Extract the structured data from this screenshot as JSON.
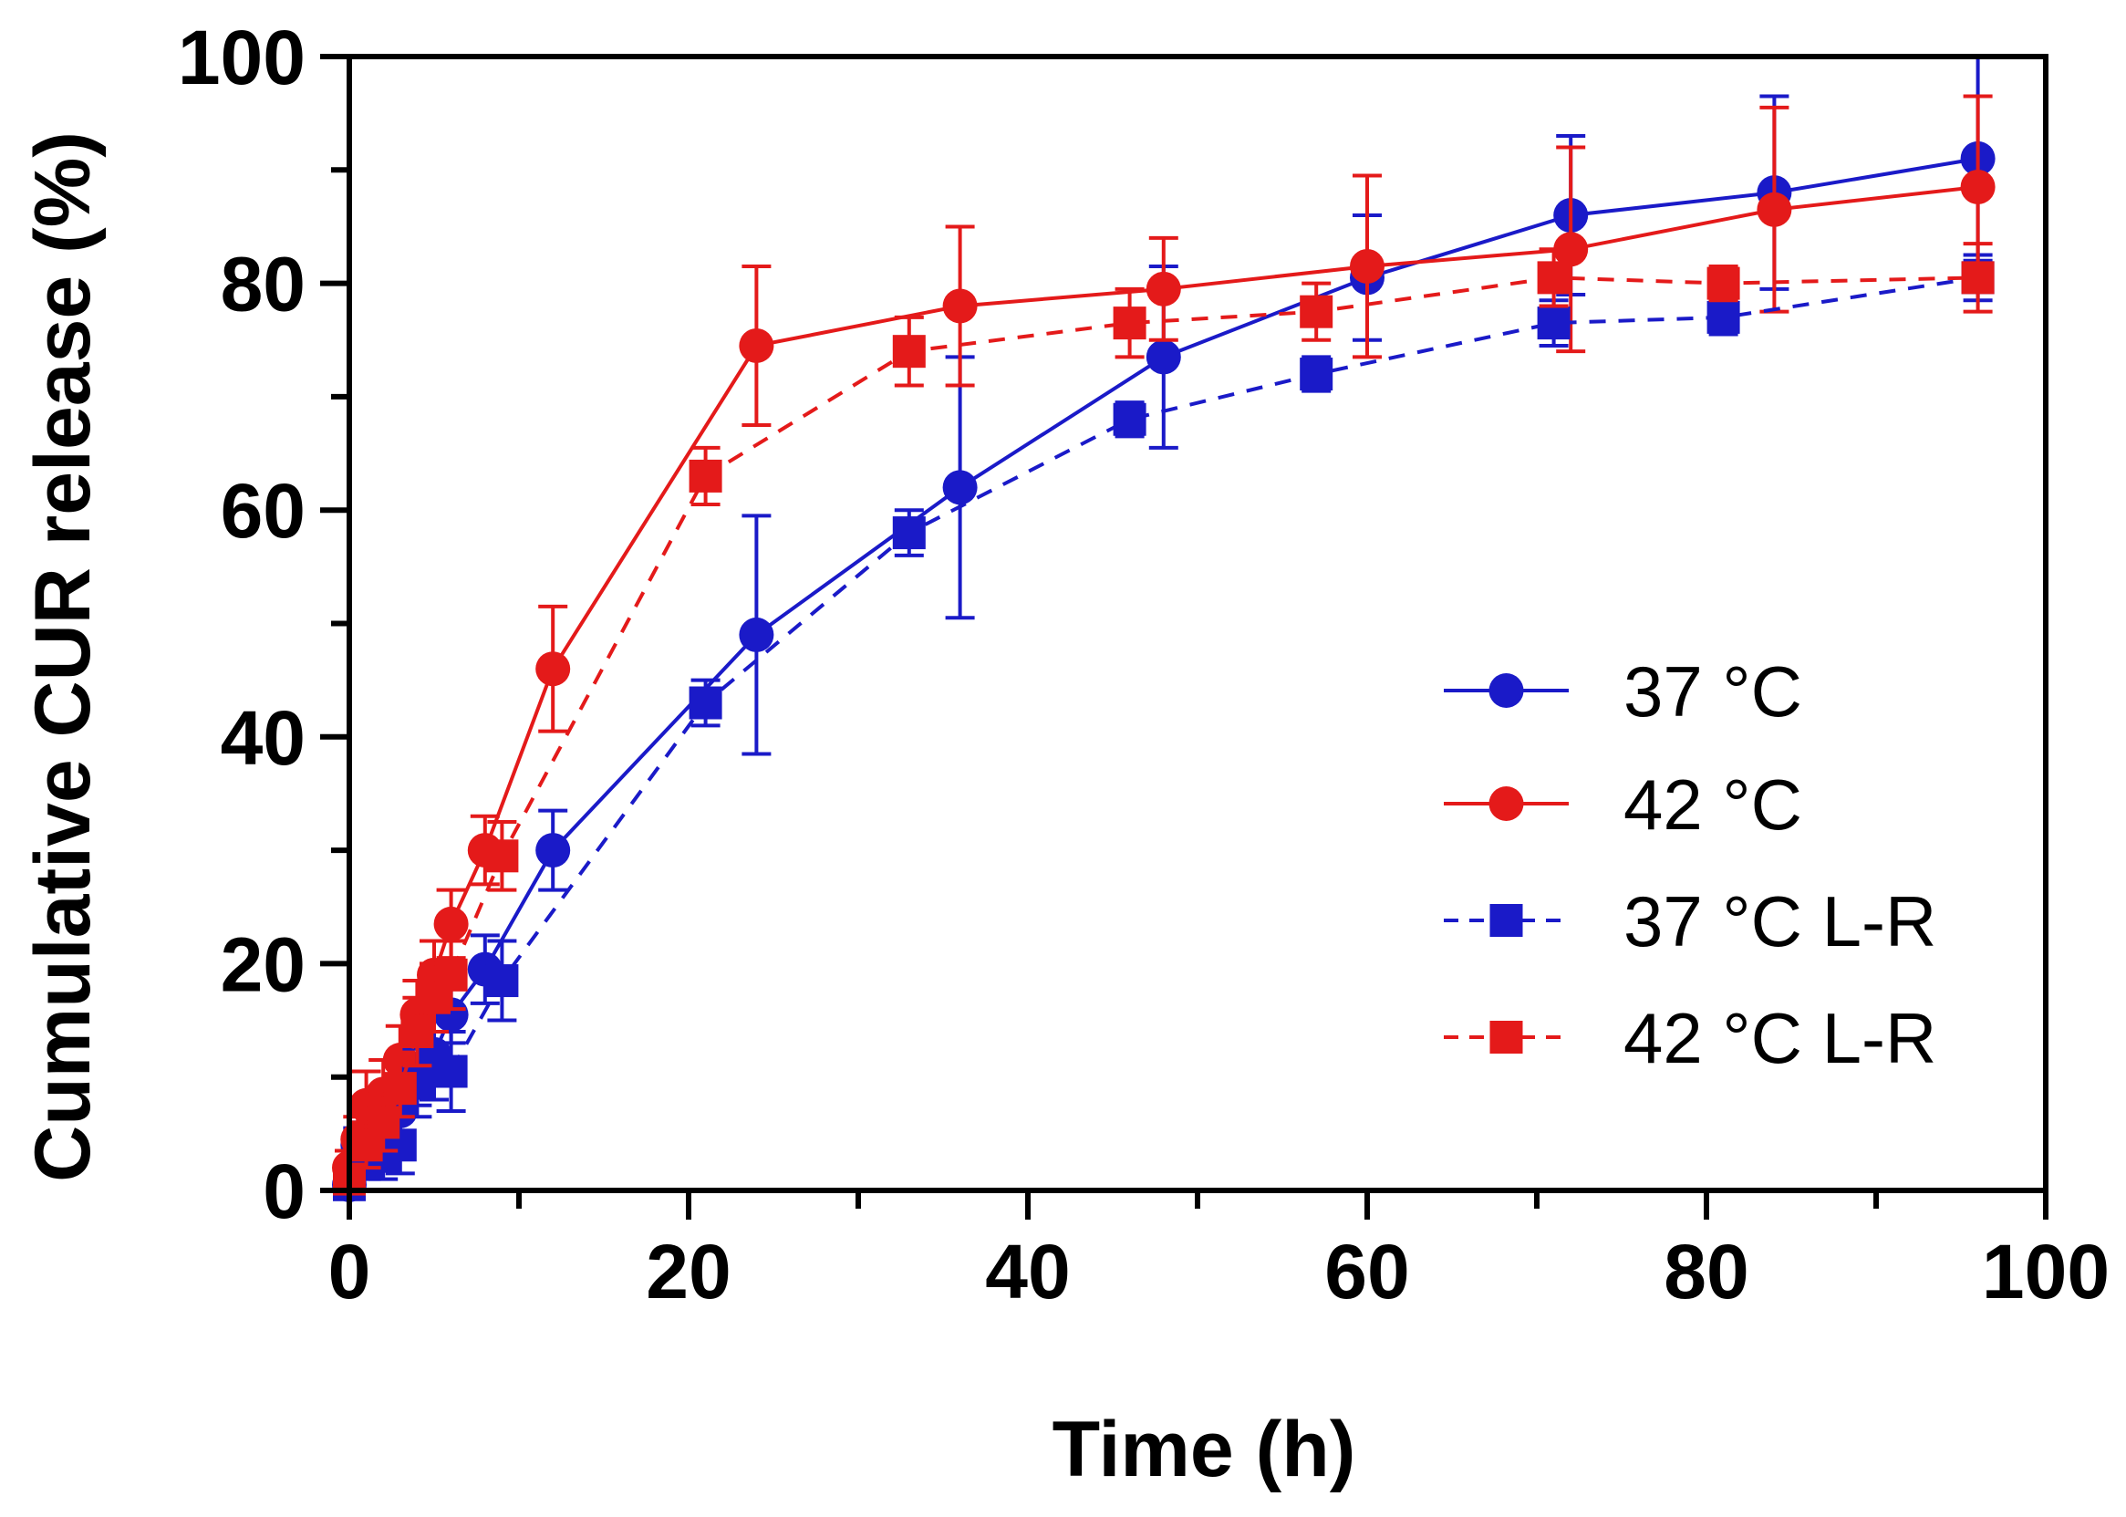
{
  "chart_data": {
    "type": "line",
    "title": "",
    "xlabel": "Time (h)",
    "ylabel": "Cumulative CUR release (%)",
    "xlim": [
      0,
      100
    ],
    "ylim": [
      0,
      100
    ],
    "x_ticks": [
      "0",
      "20",
      "40",
      "60",
      "80",
      "100"
    ],
    "y_ticks": [
      "0",
      "20",
      "40",
      "60",
      "80",
      "100"
    ],
    "legend_position": "middle-right",
    "series": [
      {
        "name": "37 °C",
        "color": "#1a1ac8",
        "marker": "circle",
        "line": "solid",
        "x": [
          0,
          0.5,
          1,
          2,
          3,
          4,
          5,
          6,
          8,
          12,
          24,
          36,
          48,
          60,
          72,
          84,
          96
        ],
        "y": [
          0.5,
          4,
          4.5,
          6,
          7,
          9.5,
          12,
          15.5,
          19.5,
          30,
          49,
          62,
          73.5,
          80.5,
          86,
          88,
          91
        ],
        "err": [
          0.5,
          1.5,
          1.5,
          2,
          2,
          2,
          2,
          2.5,
          3,
          3.5,
          10.5,
          11.5,
          8,
          5.5,
          7,
          8.5,
          9
        ]
      },
      {
        "name": "42 °C",
        "color": "#e41a1a",
        "marker": "circle",
        "line": "solid",
        "x": [
          0,
          0.5,
          1,
          2,
          3,
          4,
          5,
          6,
          8,
          12,
          24,
          36,
          48,
          60,
          72,
          84,
          96
        ],
        "y": [
          2,
          4.5,
          7.5,
          8.5,
          11.5,
          15.5,
          19,
          23.5,
          30,
          46,
          74.5,
          78,
          79.5,
          81.5,
          83,
          86.5,
          88.5
        ],
        "err": [
          1.5,
          2,
          3,
          3,
          3,
          3,
          3,
          3,
          3,
          5.5,
          7,
          7,
          4.5,
          8,
          9,
          9,
          8
        ]
      },
      {
        "name": "37 °C L-R",
        "color": "#1a1ac8",
        "marker": "square",
        "line": "dashed",
        "x": [
          0,
          1,
          2,
          3,
          4,
          5,
          6,
          9,
          21,
          33,
          46,
          57,
          71,
          81,
          96
        ],
        "y": [
          0.5,
          2.5,
          3,
          4,
          9.5,
          11,
          10.5,
          18.5,
          43,
          58,
          68,
          72,
          76.5,
          77,
          80.5
        ],
        "err": [
          0.5,
          1.5,
          2,
          2.5,
          3,
          3,
          3.5,
          3.5,
          2,
          2,
          1.5,
          1.5,
          2,
          1.5,
          2
        ]
      },
      {
        "name": "42 °C L-R",
        "color": "#e41a1a",
        "marker": "square",
        "line": "dashed",
        "x": [
          0,
          1,
          2,
          3,
          4,
          5,
          6,
          9,
          21,
          33,
          46,
          57,
          71,
          81,
          96
        ],
        "y": [
          1,
          4,
          6,
          9,
          14,
          17,
          19,
          29.5,
          63,
          74,
          76.5,
          77.5,
          80.5,
          80,
          80.5
        ],
        "err": [
          1,
          2,
          2.5,
          2.5,
          3,
          3,
          3,
          3,
          2.5,
          3,
          3,
          2.5,
          2.5,
          1.5,
          3
        ]
      }
    ]
  }
}
